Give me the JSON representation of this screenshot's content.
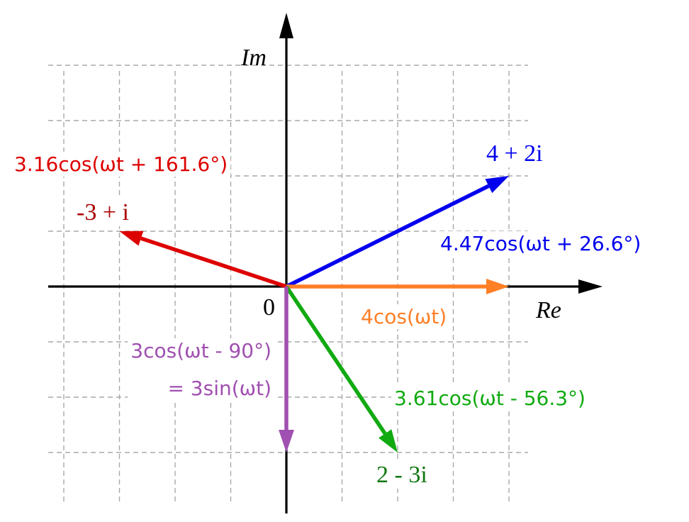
{
  "axes": {
    "x_label": "Re",
    "y_label": "Im",
    "origin_label": "0",
    "xlim": [
      -4.3,
      5.7
    ],
    "ylim": [
      -4.1,
      5.0
    ],
    "grid_x": [
      -4,
      -3,
      -2,
      -1,
      1,
      2,
      3,
      4
    ],
    "grid_y": [
      -3,
      -2,
      -1,
      1,
      2,
      3,
      4
    ]
  },
  "colors": {
    "blue": "#0000ee",
    "red": "#dd0000",
    "dark_red": "#aa0000",
    "orange": "#ff7f27",
    "green": "#11aa11",
    "dark_green": "#117711",
    "purple": "#a050b0"
  },
  "vectors": [
    {
      "id": "v-blue",
      "x": 4,
      "y": 2,
      "color": "#0000ee",
      "label_color": "#0000ee",
      "label": "4 + 2i",
      "formula": "4.47cos(ωt + 26.6°)"
    },
    {
      "id": "v-red",
      "x": -3,
      "y": 1,
      "color": "#dd0000",
      "label_color": "#aa0000",
      "label": "-3 + i",
      "formula": "3.16cos(ωt + 161.6°)"
    },
    {
      "id": "v-orange",
      "x": 4,
      "y": 0,
      "color": "#ff7f27",
      "label": "",
      "formula": "4cos(ωt)"
    },
    {
      "id": "v-green",
      "x": 2,
      "y": -3,
      "color": "#11aa11",
      "label_color": "#117711",
      "label": "2 - 3i",
      "formula": "3.61cos(ωt - 56.3°)"
    },
    {
      "id": "v-purple",
      "x": 0,
      "y": -3,
      "color": "#a050b0",
      "label": "",
      "formula": "3cos(ωt - 90°)",
      "formula2": "= 3sin(ωt)"
    }
  ]
}
